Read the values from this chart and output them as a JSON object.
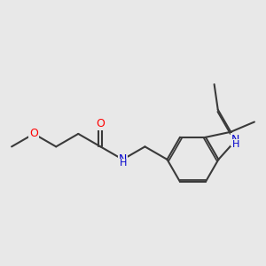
{
  "background_color": "#e8e8e8",
  "bond_color": "#3a3a3a",
  "bond_width": 1.5,
  "atom_colors": {
    "O": "#ff0000",
    "N": "#0000cc"
  },
  "font_size_atom": 9,
  "font_size_H": 8
}
